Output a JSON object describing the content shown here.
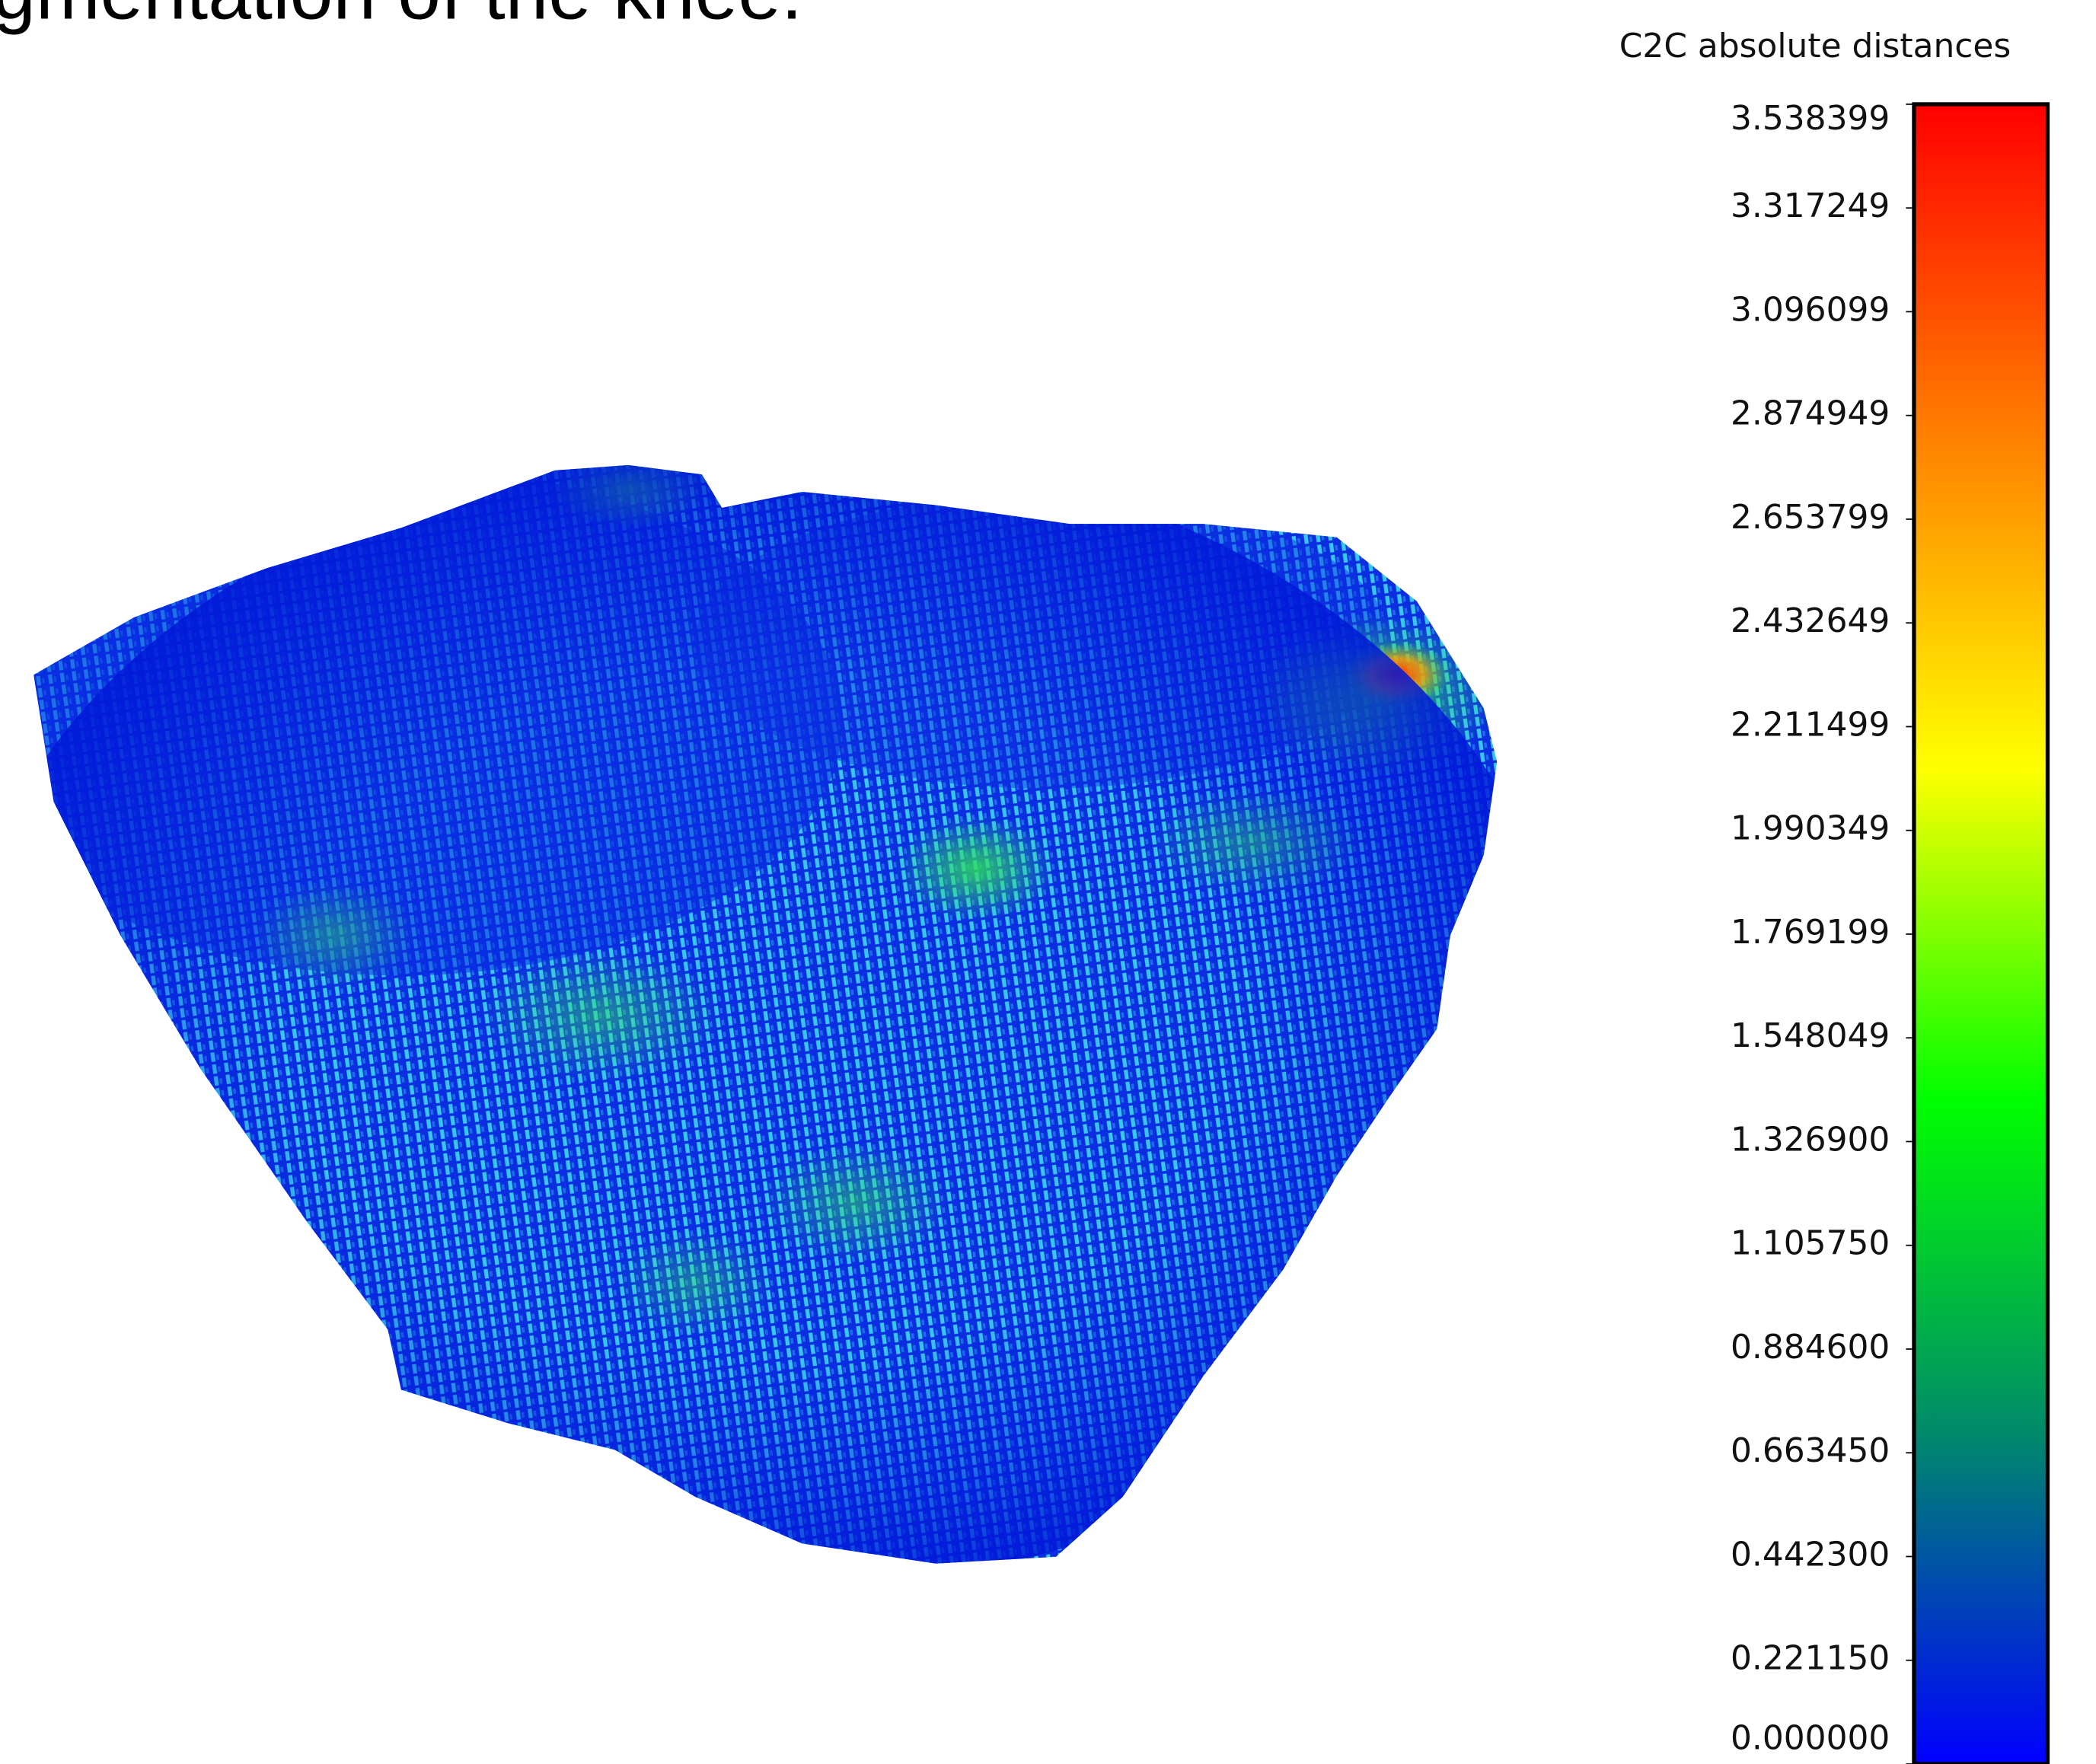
{
  "title": "egmentation of the knee.",
  "colorbar": {
    "title": "C2C absolute distances",
    "lim": [
      0,
      3.538399
    ],
    "colors": [
      "#0000ff",
      "#008a6a",
      "#00ff00",
      "#ffff00",
      "#ff8000",
      "#ff0000"
    ],
    "ticks": [
      {
        "value": 3.538399,
        "label": "3.538399"
      },
      {
        "value": 3.317249,
        "label": "3.317249"
      },
      {
        "value": 3.096099,
        "label": "3.096099"
      },
      {
        "value": 2.874949,
        "label": "2.874949"
      },
      {
        "value": 2.653799,
        "label": "2.653799"
      },
      {
        "value": 2.432649,
        "label": "2.432649"
      },
      {
        "value": 2.211499,
        "label": "2.211499"
      },
      {
        "value": 1.990349,
        "label": "1.990349"
      },
      {
        "value": 1.769199,
        "label": "1.769199"
      },
      {
        "value": 1.548049,
        "label": "1.548049"
      },
      {
        "value": 1.3269,
        "label": "1.326900"
      },
      {
        "value": 1.10575,
        "label": "1.105750"
      },
      {
        "value": 0.8846,
        "label": "0.884600"
      },
      {
        "value": 0.66345,
        "label": "0.663450"
      },
      {
        "value": 0.4423,
        "label": "0.442300"
      },
      {
        "value": 0.22115,
        "label": "0.221150"
      },
      {
        "value": 0,
        "label": "0.000000"
      }
    ]
  }
}
